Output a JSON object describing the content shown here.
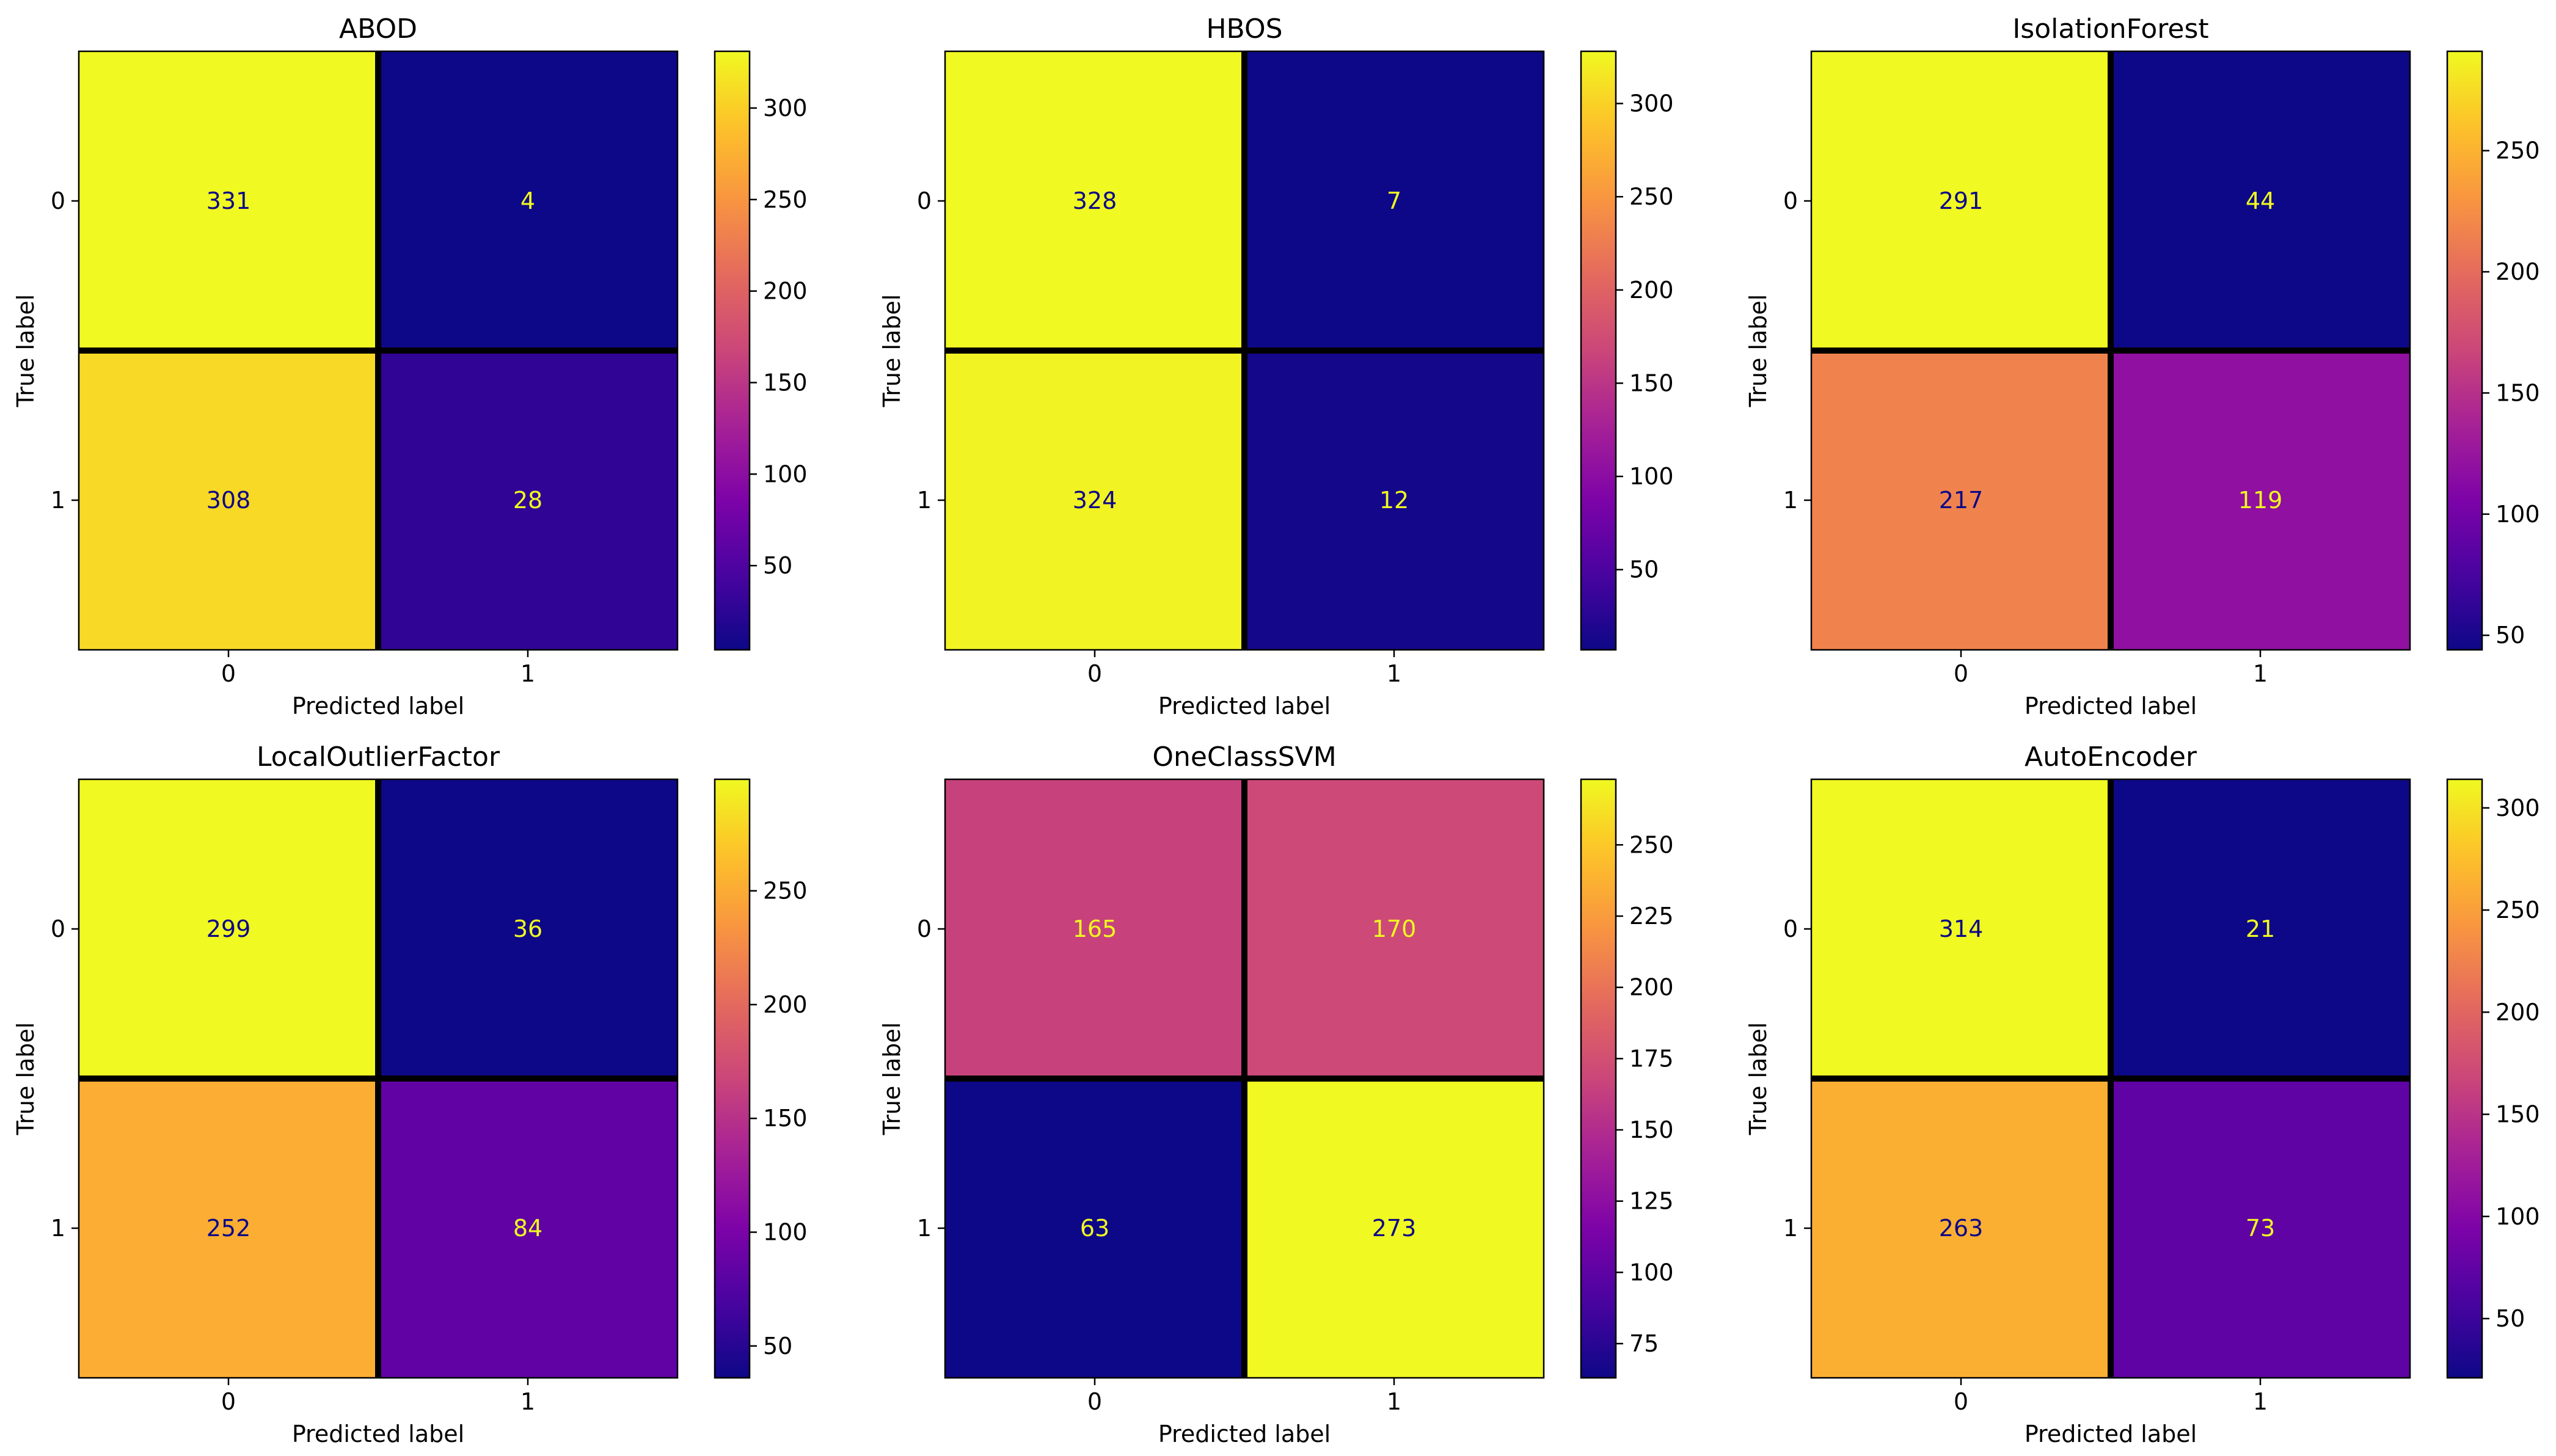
{
  "chart_data": [
    {
      "type": "heatmap",
      "title": "ABOD",
      "xlabel": "Predicted label",
      "ylabel": "True label",
      "x_categories": [
        "0",
        "1"
      ],
      "y_categories": [
        "0",
        "1"
      ],
      "values": [
        [
          331,
          4
        ],
        [
          308,
          28
        ]
      ],
      "colormap": "plasma",
      "colorbar_ticks": [
        "50",
        "100",
        "150",
        "200",
        "250",
        "300"
      ]
    },
    {
      "type": "heatmap",
      "title": "HBOS",
      "xlabel": "Predicted label",
      "ylabel": "True label",
      "x_categories": [
        "0",
        "1"
      ],
      "y_categories": [
        "0",
        "1"
      ],
      "values": [
        [
          328,
          7
        ],
        [
          324,
          12
        ]
      ],
      "colormap": "plasma",
      "colorbar_ticks": [
        "50",
        "100",
        "150",
        "200",
        "250",
        "300"
      ]
    },
    {
      "type": "heatmap",
      "title": "IsolationForest",
      "xlabel": "Predicted label",
      "ylabel": "True label",
      "x_categories": [
        "0",
        "1"
      ],
      "y_categories": [
        "0",
        "1"
      ],
      "values": [
        [
          291,
          44
        ],
        [
          217,
          119
        ]
      ],
      "colormap": "plasma",
      "colorbar_ticks": [
        "50",
        "100",
        "150",
        "200",
        "250"
      ]
    },
    {
      "type": "heatmap",
      "title": "LocalOutlierFactor",
      "xlabel": "Predicted label",
      "ylabel": "True label",
      "x_categories": [
        "0",
        "1"
      ],
      "y_categories": [
        "0",
        "1"
      ],
      "values": [
        [
          299,
          36
        ],
        [
          252,
          84
        ]
      ],
      "colormap": "plasma",
      "colorbar_ticks": [
        "50",
        "100",
        "150",
        "200",
        "250"
      ]
    },
    {
      "type": "heatmap",
      "title": "OneClassSVM",
      "xlabel": "Predicted label",
      "ylabel": "True label",
      "x_categories": [
        "0",
        "1"
      ],
      "y_categories": [
        "0",
        "1"
      ],
      "values": [
        [
          165,
          170
        ],
        [
          63,
          273
        ]
      ],
      "colormap": "plasma",
      "colorbar_ticks": [
        "75",
        "100",
        "125",
        "150",
        "175",
        "200",
        "225",
        "250"
      ]
    },
    {
      "type": "heatmap",
      "title": "AutoEncoder",
      "xlabel": "Predicted label",
      "ylabel": "True label",
      "x_categories": [
        "0",
        "1"
      ],
      "y_categories": [
        "0",
        "1"
      ],
      "values": [
        [
          314,
          21
        ],
        [
          263,
          73
        ]
      ],
      "colormap": "plasma",
      "colorbar_ticks": [
        "50",
        "100",
        "150",
        "200",
        "250",
        "300"
      ]
    }
  ]
}
